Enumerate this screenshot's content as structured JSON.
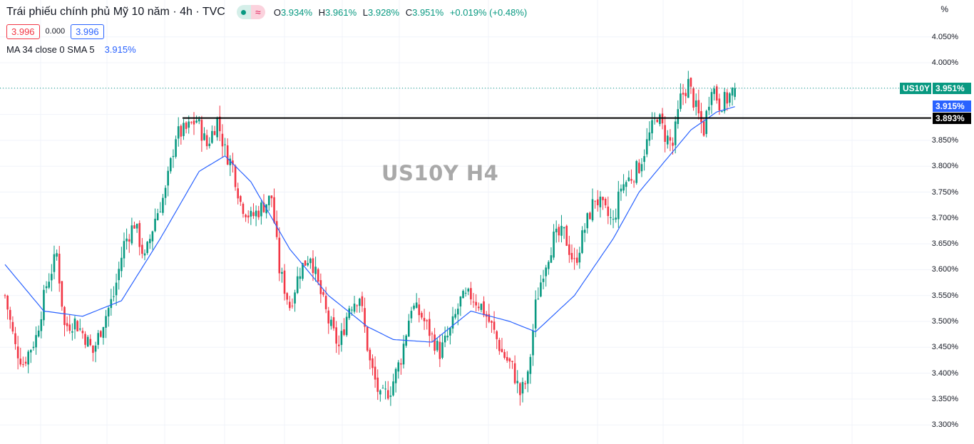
{
  "header": {
    "title": "Trái phiếu chính phủ Mỹ 10 năm · 4h · TVC",
    "status_icons": [
      "market-open-dot-icon",
      "delayed-data-icon"
    ],
    "ohlc": {
      "open_label": "O",
      "open": "3.934%",
      "high_label": "H",
      "high": "3.961%",
      "low_label": "L",
      "low": "3.928%",
      "close_label": "C",
      "close": "3.951%",
      "change": "+0.019% (+0.48%)"
    },
    "sell_price": "3.996",
    "spread": "0.000",
    "buy_price": "3.996",
    "indicator_label": "MA 34 close 0 SMA 5",
    "indicator_value": "3.915%"
  },
  "watermark": "US10Y H4",
  "price_axis": {
    "unit": "%",
    "ticks": [
      "4.050%",
      "4.000%",
      "3.850%",
      "3.800%",
      "3.750%",
      "3.700%",
      "3.650%",
      "3.600%",
      "3.550%",
      "3.500%",
      "3.450%",
      "3.400%",
      "3.350%",
      "3.300%"
    ]
  },
  "tags": {
    "symbol": "US10Y",
    "last_price": "3.951%",
    "ma_value": "3.915%",
    "hline_value": "3.893%"
  },
  "colors": {
    "up": "#089981",
    "down": "#f23645",
    "ma": "#2962ff",
    "hline": "#000000",
    "grid": "#f0f3fa"
  },
  "chart_data": {
    "type": "candlestick",
    "title": "Trái phiếu chính phủ Mỹ 10 năm · 4h · TVC",
    "symbol": "US10Y",
    "timeframe": "4h",
    "ylabel": "%",
    "ylim": [
      3.28,
      4.08
    ],
    "y_ticks": [
      3.3,
      3.35,
      3.4,
      3.45,
      3.5,
      3.55,
      3.6,
      3.65,
      3.7,
      3.75,
      3.8,
      3.85,
      3.9,
      3.95,
      4.0,
      4.05
    ],
    "last_bar": {
      "open": 3.934,
      "high": 3.961,
      "low": 3.928,
      "close": 3.951
    },
    "horizontal_line": 3.893,
    "ma": {
      "name": "MA 34 close SMA",
      "last": 3.915
    },
    "close_path_keypoints": [
      [
        0,
        3.55
      ],
      [
        4,
        3.45
      ],
      [
        7,
        3.42
      ],
      [
        12,
        3.47
      ],
      [
        16,
        3.57
      ],
      [
        20,
        3.63
      ],
      [
        23,
        3.49
      ],
      [
        27,
        3.5
      ],
      [
        31,
        3.47
      ],
      [
        34,
        3.44
      ],
      [
        38,
        3.5
      ],
      [
        42,
        3.55
      ],
      [
        46,
        3.65
      ],
      [
        50,
        3.69
      ],
      [
        54,
        3.62
      ],
      [
        58,
        3.7
      ],
      [
        62,
        3.75
      ],
      [
        66,
        3.86
      ],
      [
        70,
        3.87
      ],
      [
        74,
        3.89
      ],
      [
        78,
        3.84
      ],
      [
        82,
        3.89
      ],
      [
        85,
        3.83
      ],
      [
        88,
        3.8
      ],
      [
        91,
        3.73
      ],
      [
        95,
        3.7
      ],
      [
        99,
        3.72
      ],
      [
        103,
        3.74
      ],
      [
        106,
        3.6
      ],
      [
        110,
        3.53
      ],
      [
        114,
        3.6
      ],
      [
        118,
        3.63
      ],
      [
        121,
        3.57
      ],
      [
        125,
        3.5
      ],
      [
        129,
        3.45
      ],
      [
        133,
        3.53
      ],
      [
        137,
        3.55
      ],
      [
        141,
        3.42
      ],
      [
        145,
        3.35
      ],
      [
        149,
        3.37
      ],
      [
        153,
        3.43
      ],
      [
        157,
        3.53
      ],
      [
        161,
        3.51
      ],
      [
        164,
        3.48
      ],
      [
        168,
        3.44
      ],
      [
        172,
        3.48
      ],
      [
        176,
        3.54
      ],
      [
        180,
        3.55
      ],
      [
        184,
        3.53
      ],
      [
        188,
        3.49
      ],
      [
        192,
        3.44
      ],
      [
        196,
        3.41
      ],
      [
        199,
        3.36
      ],
      [
        202,
        3.39
      ],
      [
        205,
        3.53
      ],
      [
        208,
        3.6
      ],
      [
        212,
        3.66
      ],
      [
        216,
        3.67
      ],
      [
        220,
        3.61
      ],
      [
        224,
        3.68
      ],
      [
        228,
        3.74
      ],
      [
        232,
        3.71
      ],
      [
        235,
        3.69
      ],
      [
        238,
        3.76
      ],
      [
        242,
        3.78
      ],
      [
        245,
        3.8
      ],
      [
        249,
        3.86
      ],
      [
        252,
        3.9
      ],
      [
        255,
        3.86
      ],
      [
        258,
        3.84
      ],
      [
        261,
        3.93
      ],
      [
        264,
        3.96
      ],
      [
        267,
        3.91
      ],
      [
        270,
        3.87
      ],
      [
        273,
        3.96
      ],
      [
        276,
        3.92
      ],
      [
        279,
        3.93
      ],
      [
        282,
        3.951
      ]
    ],
    "ma_path_points": [
      [
        0,
        3.61
      ],
      [
        15,
        3.52
      ],
      [
        30,
        3.51
      ],
      [
        45,
        3.54
      ],
      [
        60,
        3.66
      ],
      [
        75,
        3.79
      ],
      [
        85,
        3.82
      ],
      [
        95,
        3.77
      ],
      [
        110,
        3.64
      ],
      [
        125,
        3.55
      ],
      [
        140,
        3.49
      ],
      [
        150,
        3.465
      ],
      [
        165,
        3.46
      ],
      [
        180,
        3.52
      ],
      [
        195,
        3.5
      ],
      [
        205,
        3.48
      ],
      [
        220,
        3.55
      ],
      [
        235,
        3.66
      ],
      [
        245,
        3.75
      ],
      [
        255,
        3.81
      ],
      [
        265,
        3.87
      ],
      [
        275,
        3.905
      ],
      [
        282,
        3.915
      ]
    ]
  }
}
